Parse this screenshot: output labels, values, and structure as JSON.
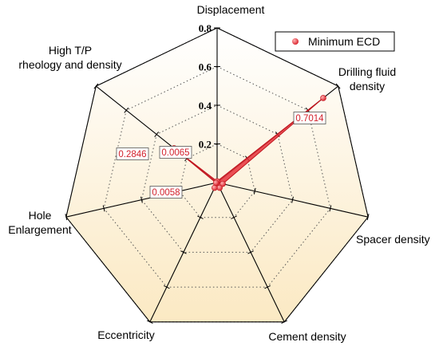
{
  "chart_data": {
    "type": "radar",
    "axes": [
      "Displacement",
      "Drilling fluid density",
      "Spacer density",
      "Cement density",
      "Eccentricity",
      "Hole Enlargement",
      "High T/P rheology and density"
    ],
    "axis_label_lines": [
      [
        "Displacement"
      ],
      [
        "Drilling fluid",
        "density"
      ],
      [
        "Spacer density"
      ],
      [
        "Cement density"
      ],
      [
        "Eccentricity"
      ],
      [
        "Hole",
        "Enlargement"
      ],
      [
        "High T/P",
        "rheology and density"
      ]
    ],
    "rmax": 0.8,
    "ticks": [
      0.2,
      0.4,
      0.6,
      0.8
    ],
    "tick_labels": [
      "0.2",
      "0.4",
      "0.6",
      "0.8"
    ],
    "grid": true,
    "grid_style": "dotted",
    "series": [
      {
        "name": "Minimum ECD",
        "color": "#e8333c",
        "fill": "#e8333c",
        "values": [
          0.0065,
          0.7014,
          0.03,
          0.03,
          0.03,
          0.0058,
          0.2846
        ]
      }
    ],
    "data_labels": [
      {
        "axis": 0,
        "text": "0.0065"
      },
      {
        "axis": 1,
        "text": "0.7014"
      },
      {
        "axis": 5,
        "text": "0.0058"
      },
      {
        "axis": 6,
        "text": "0.2846"
      }
    ],
    "legend": {
      "placement": "top-right",
      "entries": [
        "Minimum ECD"
      ]
    },
    "background_gradient": [
      "#ffffff",
      "#fbe9c3"
    ]
  }
}
